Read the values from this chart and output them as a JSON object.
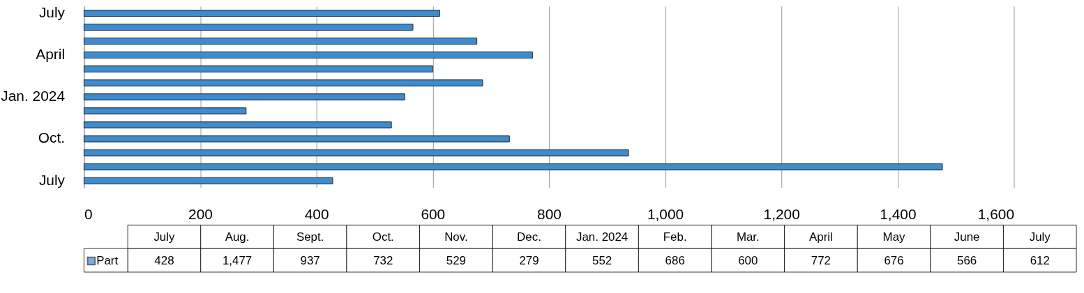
{
  "chart_data": [
    {
      "type": "bar",
      "orientation": "horizontal",
      "categories": [
        "July",
        null,
        null,
        "April",
        null,
        null,
        "Jan. 2024",
        null,
        null,
        "Oct.",
        null,
        null,
        "July"
      ],
      "series": [
        {
          "color": "#3f8ccc",
          "values": [
            612,
            566,
            676,
            772,
            600,
            686,
            552,
            279,
            529,
            732,
            937,
            1477,
            428
          ]
        }
      ],
      "xlim": [
        0,
        1600
      ],
      "xticks": [
        0,
        200,
        400,
        600,
        800,
        {
          "value": 1000,
          "label": "1,000"
        },
        {
          "value": 1200,
          "label": "1,200"
        },
        {
          "value": 1400,
          "label": "1,400"
        },
        {
          "value": 1600,
          "label": "1,600"
        }
      ],
      "grid": "x"
    },
    {
      "type": "other",
      "categories": [
        "July",
        "Aug.",
        "Sept.",
        "Oct.",
        "Nov.",
        "Dec.",
        "Jan. 2024",
        "Feb.",
        "Mar.",
        "April",
        "May",
        "June",
        "July"
      ],
      "series": [
        {
          "name": "Part",
          "values": [
            428,
            1477,
            937,
            732,
            529,
            279,
            552,
            686,
            600,
            772,
            676,
            566,
            612
          ],
          "value_labels": [
            "428",
            "1,477",
            "937",
            "732",
            "529",
            "279",
            "552",
            "686",
            "600",
            "772",
            "676",
            "566",
            "612"
          ]
        }
      ],
      "legend": "left"
    }
  ]
}
